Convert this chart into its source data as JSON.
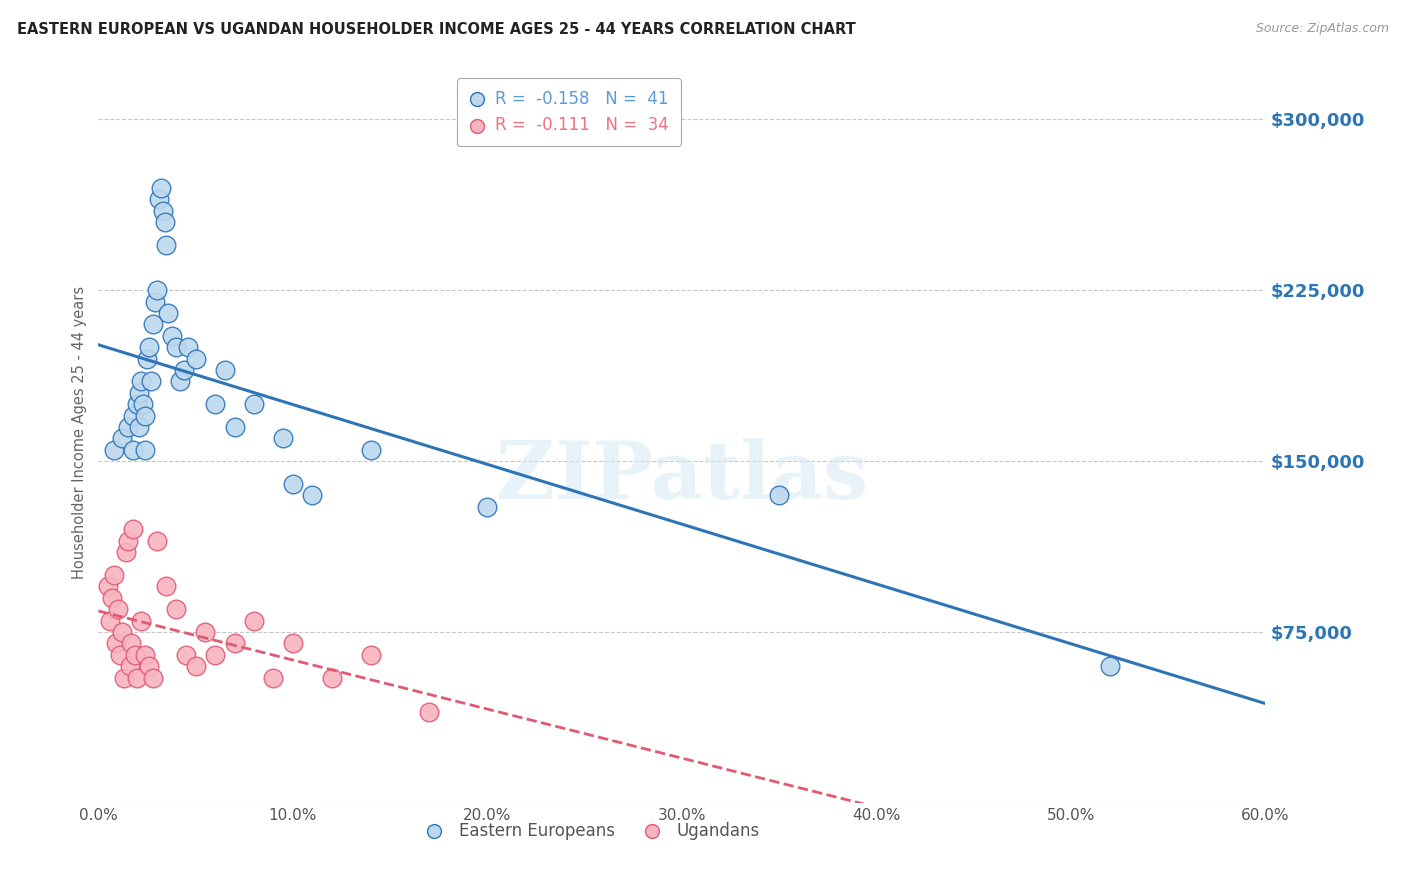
{
  "title": "EASTERN EUROPEAN VS UGANDAN HOUSEHOLDER INCOME AGES 25 - 44 YEARS CORRELATION CHART",
  "source": "Source: ZipAtlas.com",
  "ylabel": "Householder Income Ages 25 - 44 years",
  "xlim": [
    0.0,
    0.6
  ],
  "ylim": [
    0,
    325000
  ],
  "yticks": [
    0,
    75000,
    150000,
    225000,
    300000
  ],
  "ytick_labels": [
    "",
    "$75,000",
    "$150,000",
    "$225,000",
    "$300,000"
  ],
  "xticks": [
    0.0,
    0.1,
    0.2,
    0.3,
    0.4,
    0.5,
    0.6
  ],
  "xtick_labels": [
    "0.0%",
    "10.0%",
    "20.0%",
    "30.0%",
    "40.0%",
    "50.0%",
    "60.0%"
  ],
  "watermark": "ZIPatlas",
  "legend_r_entries": [
    {
      "label": "R =  -0.158   N =  41",
      "color": "#5b9bd5"
    },
    {
      "label": "R =  -0.111   N =  34",
      "color": "#f07080"
    }
  ],
  "blue_scatter_x": [
    0.008,
    0.012,
    0.015,
    0.018,
    0.018,
    0.02,
    0.021,
    0.021,
    0.022,
    0.023,
    0.024,
    0.024,
    0.025,
    0.026,
    0.027,
    0.028,
    0.029,
    0.03,
    0.031,
    0.032,
    0.033,
    0.034,
    0.035,
    0.036,
    0.038,
    0.04,
    0.042,
    0.044,
    0.046,
    0.05,
    0.06,
    0.065,
    0.07,
    0.08,
    0.095,
    0.1,
    0.11,
    0.14,
    0.2,
    0.35,
    0.52
  ],
  "blue_scatter_y": [
    155000,
    160000,
    165000,
    170000,
    155000,
    175000,
    180000,
    165000,
    185000,
    175000,
    155000,
    170000,
    195000,
    200000,
    185000,
    210000,
    220000,
    225000,
    265000,
    270000,
    260000,
    255000,
    245000,
    215000,
    205000,
    200000,
    185000,
    190000,
    200000,
    195000,
    175000,
    190000,
    165000,
    175000,
    160000,
    140000,
    135000,
    155000,
    130000,
    135000,
    60000
  ],
  "pink_scatter_x": [
    0.005,
    0.006,
    0.007,
    0.008,
    0.009,
    0.01,
    0.011,
    0.012,
    0.013,
    0.014,
    0.015,
    0.016,
    0.017,
    0.018,
    0.019,
    0.02,
    0.022,
    0.024,
    0.026,
    0.028,
    0.03,
    0.035,
    0.04,
    0.045,
    0.05,
    0.055,
    0.06,
    0.07,
    0.08,
    0.09,
    0.1,
    0.12,
    0.14,
    0.17
  ],
  "pink_scatter_y": [
    95000,
    80000,
    90000,
    100000,
    70000,
    85000,
    65000,
    75000,
    55000,
    110000,
    115000,
    60000,
    70000,
    120000,
    65000,
    55000,
    80000,
    65000,
    60000,
    55000,
    115000,
    95000,
    85000,
    65000,
    60000,
    75000,
    65000,
    70000,
    80000,
    55000,
    70000,
    55000,
    65000,
    40000
  ],
  "blue_line_color": "#2e75b6",
  "pink_line_color": "#e05a72",
  "blue_scatter_color": "#bdd7ee",
  "pink_scatter_color": "#f8b4c0",
  "background_color": "#ffffff",
  "grid_color": "#c8c8c8",
  "tick_label_color_y": "#2e75b6",
  "tick_label_color_x": "#555555"
}
